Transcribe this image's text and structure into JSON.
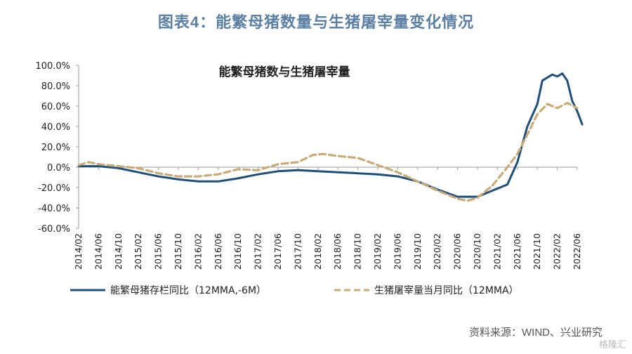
{
  "figure_title": "图表4：能繁母猪数量与生猪屠宰量变化情况",
  "source": "资料来源：WIND、兴业研究",
  "watermark": "格隆汇",
  "colors": {
    "series1": "#1f4e79",
    "series2": "#c8ab78",
    "title": "#5b7fa3"
  },
  "chart_data": {
    "type": "line",
    "title": "能繁母猪数与生猪屠宰量",
    "xlabel": "",
    "ylabel": "",
    "ylim": [
      -60,
      100
    ],
    "yticks": [
      -60,
      -40,
      -20,
      0,
      20,
      40,
      60,
      80,
      100
    ],
    "ytick_labels": [
      "-60.0%",
      "-40.0%",
      "-20.0%",
      "0.0%",
      "20.0%",
      "40.0%",
      "60.0%",
      "80.0%",
      "100.0%"
    ],
    "x_range": [
      "2014/02",
      "2022/06"
    ],
    "xticks": [
      "2014/02",
      "2014/06",
      "2014/10",
      "2015/02",
      "2015/06",
      "2015/10",
      "2016/02",
      "2016/06",
      "2016/10",
      "2017/02",
      "2017/06",
      "2017/10",
      "2018/02",
      "2018/06",
      "2018/10",
      "2019/02",
      "2019/06",
      "2019/10",
      "2020/02",
      "2020/06",
      "2020/10",
      "2021/02",
      "2021/06",
      "2021/10",
      "2022/02",
      "2022/06"
    ],
    "grid": false,
    "legend_position": "bottom",
    "series": [
      {
        "name": "能繁母猪存栏同比（12MMA,-6M）",
        "style": "solid",
        "color": "#1f4e79",
        "points": [
          [
            "2014/02",
            1
          ],
          [
            "2014/06",
            1
          ],
          [
            "2014/10",
            -1
          ],
          [
            "2015/02",
            -5
          ],
          [
            "2015/06",
            -9
          ],
          [
            "2015/10",
            -12
          ],
          [
            "2016/02",
            -14
          ],
          [
            "2016/06",
            -14
          ],
          [
            "2016/10",
            -11
          ],
          [
            "2017/02",
            -7
          ],
          [
            "2017/06",
            -4
          ],
          [
            "2017/10",
            -3
          ],
          [
            "2018/02",
            -4
          ],
          [
            "2018/06",
            -5
          ],
          [
            "2018/10",
            -6
          ],
          [
            "2019/02",
            -7
          ],
          [
            "2019/06",
            -9
          ],
          [
            "2019/10",
            -14
          ],
          [
            "2020/02",
            -22
          ],
          [
            "2020/06",
            -29
          ],
          [
            "2020/10",
            -29
          ],
          [
            "2021/01",
            -23
          ],
          [
            "2021/04",
            -17
          ],
          [
            "2021/06",
            5
          ],
          [
            "2021/08",
            40
          ],
          [
            "2021/10",
            62
          ],
          [
            "2021/11",
            85
          ],
          [
            "2022/01",
            91
          ],
          [
            "2022/02",
            89
          ],
          [
            "2022/03",
            92
          ],
          [
            "2022/04",
            85
          ],
          [
            "2022/05",
            65
          ],
          [
            "2022/06",
            55
          ],
          [
            "2022/07",
            42
          ]
        ]
      },
      {
        "name": "生猪屠宰量当月同比（12MMA）",
        "style": "dashed",
        "color": "#c8ab78",
        "points": [
          [
            "2014/02",
            2
          ],
          [
            "2014/04",
            5
          ],
          [
            "2014/06",
            3
          ],
          [
            "2014/10",
            1
          ],
          [
            "2015/02",
            -1
          ],
          [
            "2015/06",
            -6
          ],
          [
            "2015/10",
            -9
          ],
          [
            "2016/02",
            -9
          ],
          [
            "2016/06",
            -7
          ],
          [
            "2016/10",
            -2
          ],
          [
            "2017/02",
            -3
          ],
          [
            "2017/06",
            3
          ],
          [
            "2017/10",
            5
          ],
          [
            "2018/01",
            12
          ],
          [
            "2018/03",
            13
          ],
          [
            "2018/06",
            11
          ],
          [
            "2018/10",
            9
          ],
          [
            "2019/02",
            2
          ],
          [
            "2019/06",
            -5
          ],
          [
            "2019/10",
            -14
          ],
          [
            "2020/02",
            -23
          ],
          [
            "2020/06",
            -31
          ],
          [
            "2020/08",
            -33
          ],
          [
            "2020/10",
            -30
          ],
          [
            "2021/01",
            -18
          ],
          [
            "2021/04",
            0
          ],
          [
            "2021/06",
            13
          ],
          [
            "2021/08",
            32
          ],
          [
            "2021/10",
            52
          ],
          [
            "2021/12",
            62
          ],
          [
            "2022/02",
            58
          ],
          [
            "2022/04",
            63
          ],
          [
            "2022/06",
            58
          ]
        ]
      }
    ]
  }
}
